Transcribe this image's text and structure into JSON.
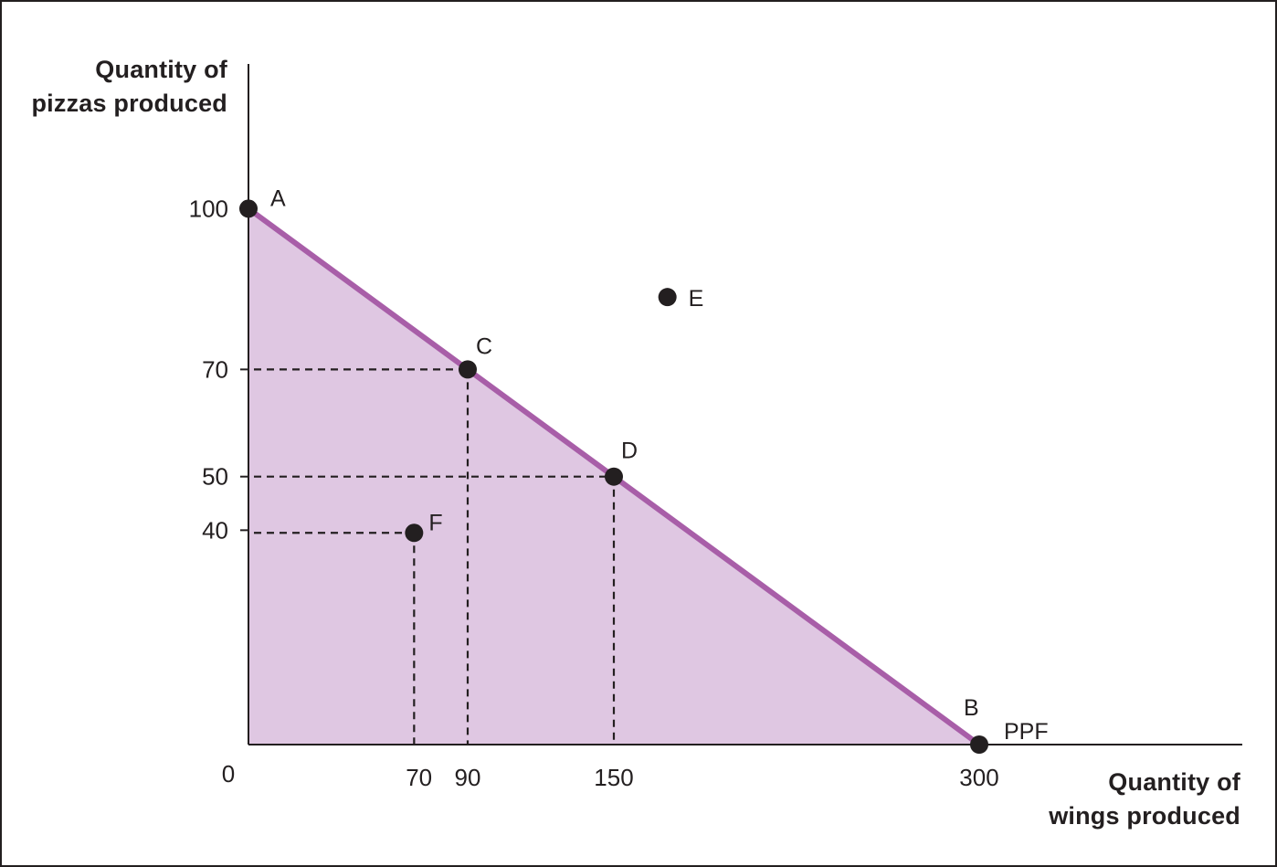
{
  "chart_data": {
    "type": "line",
    "ylabel_lines": [
      "Quantity of",
      "pizzas produced"
    ],
    "xlabel_lines": [
      "Quantity of",
      "wings produced"
    ],
    "origin_label": "0",
    "x_ticks": [
      70,
      90,
      150,
      300
    ],
    "y_ticks": [
      40,
      50,
      70,
      100
    ],
    "xlim": [
      0,
      408
    ],
    "ylim": [
      0,
      127
    ],
    "series": [
      {
        "name": "PPF",
        "x": [
          0,
          300
        ],
        "y": [
          100,
          0
        ]
      }
    ],
    "points": [
      {
        "label": "A",
        "x": 0,
        "y": 100
      },
      {
        "label": "C",
        "x": 90,
        "y": 70
      },
      {
        "label": "D",
        "x": 150,
        "y": 50
      },
      {
        "label": "E",
        "x": 172,
        "y": 83.5
      },
      {
        "label": "F",
        "x": 68,
        "y": 39.5
      },
      {
        "label": "B",
        "x": 300,
        "y": 0
      }
    ],
    "guides": [
      {
        "point": "C",
        "x": 90,
        "y": 70
      },
      {
        "point": "D",
        "x": 150,
        "y": 50
      },
      {
        "point": "F",
        "x": 68,
        "y": 39.5
      }
    ],
    "colors": {
      "curve": "#a85ea8",
      "fill": "#dfc7e2",
      "ink": "#231f20"
    }
  }
}
